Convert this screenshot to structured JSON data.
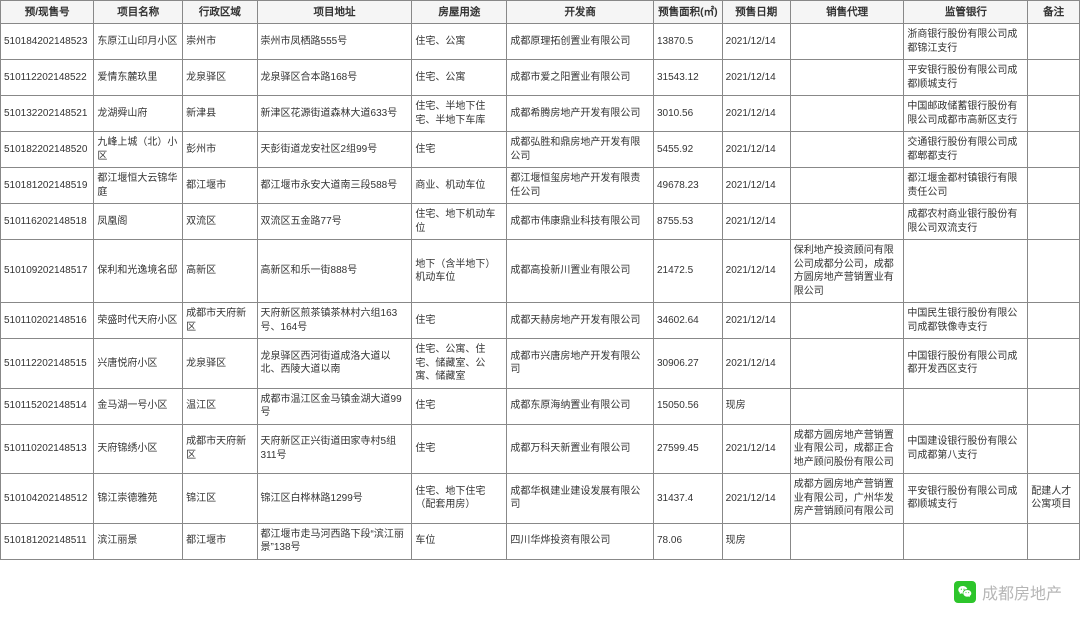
{
  "table": {
    "columns": [
      "预/现售号",
      "项目名称",
      "行政区域",
      "项目地址",
      "房屋用途",
      "开发商",
      "预售面积(㎡)",
      "预售日期",
      "销售代理",
      "监管银行",
      "备注"
    ],
    "rows": [
      [
        "510184202148523",
        "东原江山印月小区",
        "崇州市",
        "崇州市凤栖路555号",
        "住宅、公寓",
        "成都原理拓创置业有限公司",
        "13870.5",
        "2021/12/14",
        "",
        "浙商银行股份有限公司成都锦江支行",
        ""
      ],
      [
        "510112202148522",
        "爱情东麓玖里",
        "龙泉驿区",
        "龙泉驿区合本路168号",
        "住宅、公寓",
        "成都市爱之阳置业有限公司",
        "31543.12",
        "2021/12/14",
        "",
        "平安银行股份有限公司成都顺城支行",
        ""
      ],
      [
        "510132202148521",
        "龙湖舜山府",
        "新津县",
        "新津区花源街道森林大道633号",
        "住宅、半地下住宅、半地下车库",
        "成都希腾房地产开发有限公司",
        "3010.56",
        "2021/12/14",
        "",
        "中国邮政储蓄银行股份有限公司成都市高新区支行",
        ""
      ],
      [
        "510182202148520",
        "九峰上城（北）小区",
        "彭州市",
        "天彭街道龙安社区2组99号",
        "住宅",
        "成都弘胜和鼎房地产开发有限公司",
        "5455.92",
        "2021/12/14",
        "",
        "交通银行股份有限公司成都郫都支行",
        ""
      ],
      [
        "510181202148519",
        "都江堰恒大云锦华庭",
        "都江堰市",
        "都江堰市永安大道南三段588号",
        "商业、机动车位",
        "都江堰恒玺房地产开发有限责任公司",
        "49678.23",
        "2021/12/14",
        "",
        "都江堰金都村镇银行有限责任公司",
        ""
      ],
      [
        "510116202148518",
        "凤凰阁",
        "双流区",
        "双流区五金路77号",
        "住宅、地下机动车位",
        "成都市伟康鼎业科技有限公司",
        "8755.53",
        "2021/12/14",
        "",
        "成都农村商业银行股份有限公司双流支行",
        ""
      ],
      [
        "510109202148517",
        "保利和光逸境名邸",
        "高新区",
        "高新区和乐一街888号",
        "地下（含半地下）机动车位",
        "成都高投新川置业有限公司",
        "21472.5",
        "2021/12/14",
        "保利地产投资顾问有限公司成都分公司，成都方圆房地产营销置业有限公司",
        "",
        ""
      ],
      [
        "510110202148516",
        "荣盛时代天府小区",
        "成都市天府新区",
        "天府新区煎茶镇茶林村六组163号、164号",
        "住宅",
        "成都天赫房地产开发有限公司",
        "34602.64",
        "2021/12/14",
        "",
        "中国民生银行股份有限公司成都铁像寺支行",
        ""
      ],
      [
        "510112202148515",
        "兴唐悦府小区",
        "龙泉驿区",
        "龙泉驿区西河街道成洛大道以北、西陵大道以南",
        "住宅、公寓、住宅、储藏室、公寓、储藏室",
        "成都市兴唐房地产开发有限公司",
        "30906.27",
        "2021/12/14",
        "",
        "中国银行股份有限公司成都开发西区支行",
        ""
      ],
      [
        "510115202148514",
        "金马湖一号小区",
        "温江区",
        "成都市温江区金马镇金湖大道99号",
        "住宅",
        "成都东原海纳置业有限公司",
        "15050.56",
        "现房",
        "",
        "",
        ""
      ],
      [
        "510110202148513",
        "天府锦绣小区",
        "成都市天府新区",
        "天府新区正兴街道田家寺村5组311号",
        "住宅",
        "成都万科天新置业有限公司",
        "27599.45",
        "2021/12/14",
        "成都方圆房地产营销置业有限公司，成都正合地产顾问股份有限公司",
        "中国建设银行股份有限公司成都第八支行",
        ""
      ],
      [
        "510104202148512",
        "锦江崇德雅苑",
        "锦江区",
        "锦江区白桦林路1299号",
        "住宅、地下住宅（配套用房）",
        "成都华枫建业建设发展有限公司",
        "31437.4",
        "2021/12/14",
        "成都方圆房地产营销置业有限公司，广州华发房产营销顾问有限公司",
        "平安银行股份有限公司成都顺城支行",
        "配建人才公寓项目"
      ],
      [
        "510181202148511",
        "滨江丽景",
        "都江堰市",
        "都江堰市走马河西路下段“滨江丽景”138号",
        "车位",
        "四川华烨投资有限公司",
        "78.06",
        "现房",
        "",
        "",
        ""
      ]
    ]
  },
  "watermark": {
    "text": "成都房地产",
    "icon_color": "#09bb07"
  }
}
